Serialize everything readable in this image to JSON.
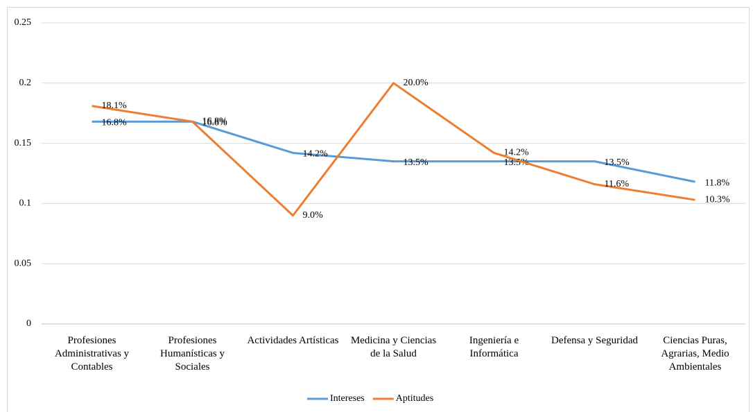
{
  "chart_data": {
    "type": "line",
    "categories": [
      "Profesiones Administrativas y Contables",
      "Profesiones Humanísticas y Sociales",
      "Actividades Artísticas",
      "Medicina y Ciencias de la Salud",
      "Ingeniería e Informática",
      "Defensa y Seguridad",
      "Ciencias Puras, Agrarias, Medio Ambientales"
    ],
    "series": [
      {
        "name": "Intereses",
        "color": "#5b9bd5",
        "values": [
          0.168,
          0.168,
          0.142,
          0.135,
          0.135,
          0.135,
          0.118
        ],
        "value_labels": [
          "16.8%",
          "16.8%",
          "14.2%",
          "13.5%",
          "13.5%",
          "13.5%",
          "11.8%"
        ]
      },
      {
        "name": "Aptitudes",
        "color": "#ed7d31",
        "values": [
          0.181,
          0.168,
          0.09,
          0.2,
          0.142,
          0.116,
          0.103
        ],
        "value_labels": [
          "18.1%",
          "16.8%",
          "9.0%",
          "20.0%",
          "14.2%",
          "11.6%",
          "10.3%"
        ]
      }
    ],
    "ylim": [
      0,
      0.25
    ],
    "yticks": [
      0,
      0.05,
      0.1,
      0.15,
      0.2,
      0.25
    ],
    "grid": true,
    "legend": "bottom"
  }
}
